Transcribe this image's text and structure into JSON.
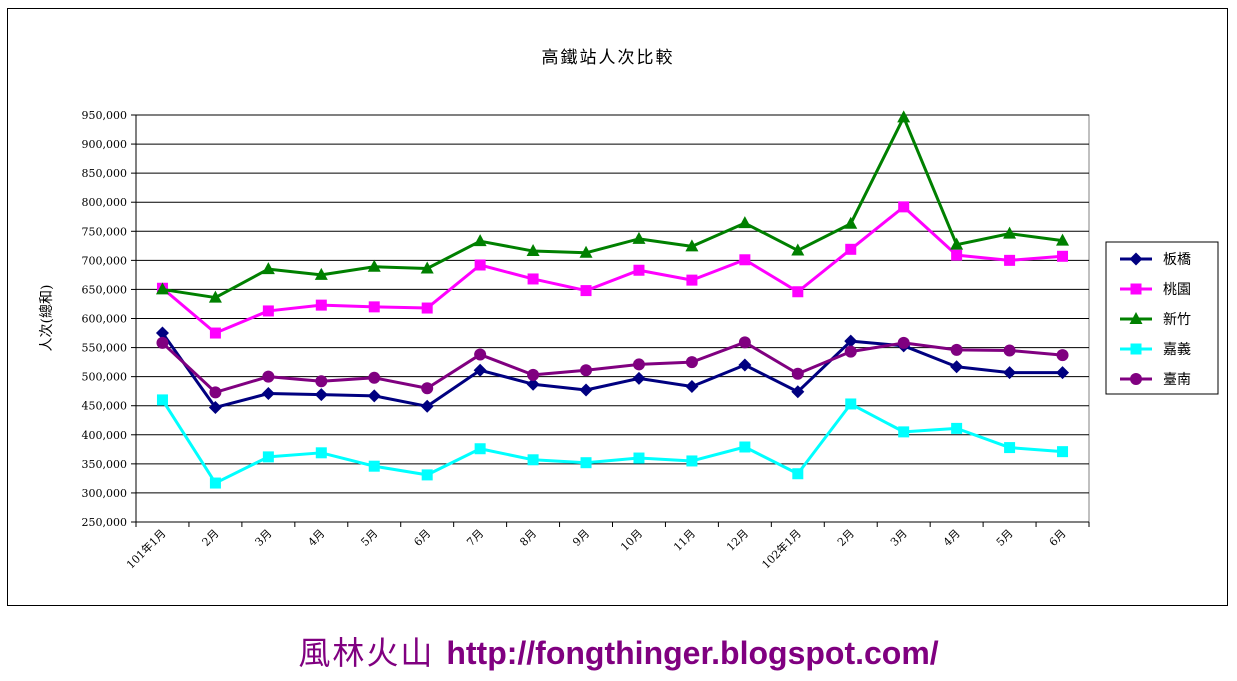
{
  "chart_data": {
    "type": "line",
    "title": "高鐵站人次比較",
    "ylabel": "人次(總和)",
    "xlabel": "",
    "ylim": [
      250000,
      950000
    ],
    "ystep": 50000,
    "ytick_labels": [
      "250,000",
      "300,000",
      "350,000",
      "400,000",
      "450,000",
      "500,000",
      "550,000",
      "600,000",
      "650,000",
      "700,000",
      "750,000",
      "800,000",
      "850,000",
      "900,000",
      "950,000"
    ],
    "categories": [
      "101年1月",
      "2月",
      "3月",
      "4月",
      "5月",
      "6月",
      "7月",
      "8月",
      "9月",
      "10月",
      "11月",
      "12月",
      "102年1月",
      "2月",
      "3月",
      "4月",
      "5月",
      "6月"
    ],
    "grid": true,
    "legend_position": "right",
    "series": [
      {
        "name": "板橋",
        "color": "#000080",
        "marker": "diamond",
        "values": [
          575000,
          447000,
          471000,
          469000,
          467000,
          449000,
          511000,
          487000,
          477000,
          497000,
          483000,
          520000,
          474000,
          561000,
          553000,
          517000,
          507000,
          507000
        ]
      },
      {
        "name": "桃園",
        "color": "#FF00FF",
        "marker": "square",
        "values": [
          652000,
          575000,
          613000,
          623000,
          620000,
          618000,
          692000,
          668000,
          648000,
          683000,
          666000,
          701000,
          646000,
          719000,
          792000,
          709000,
          700000,
          707000
        ]
      },
      {
        "name": "新竹",
        "color": "#008000",
        "marker": "triangle",
        "values": [
          650000,
          636000,
          685000,
          675000,
          689000,
          686000,
          733000,
          716000,
          713000,
          737000,
          724000,
          764000,
          717000,
          763000,
          946000,
          727000,
          746000,
          734000
        ]
      },
      {
        "name": "嘉義",
        "color": "#00FFFF",
        "marker": "square",
        "values": [
          460000,
          317000,
          362000,
          369000,
          346000,
          331000,
          376000,
          357000,
          352000,
          360000,
          355000,
          379000,
          333000,
          453000,
          405000,
          411000,
          378000,
          371000
        ]
      },
      {
        "name": "臺南",
        "color": "#800080",
        "marker": "circle",
        "values": [
          558000,
          473000,
          500000,
          492000,
          498000,
          480000,
          538000,
          503000,
          511000,
          521000,
          525000,
          559000,
          505000,
          543000,
          558000,
          546000,
          545000,
          537000
        ]
      }
    ]
  },
  "footer": {
    "name": "風林火山",
    "url": "http://fongthinger.blogspot.com/"
  }
}
